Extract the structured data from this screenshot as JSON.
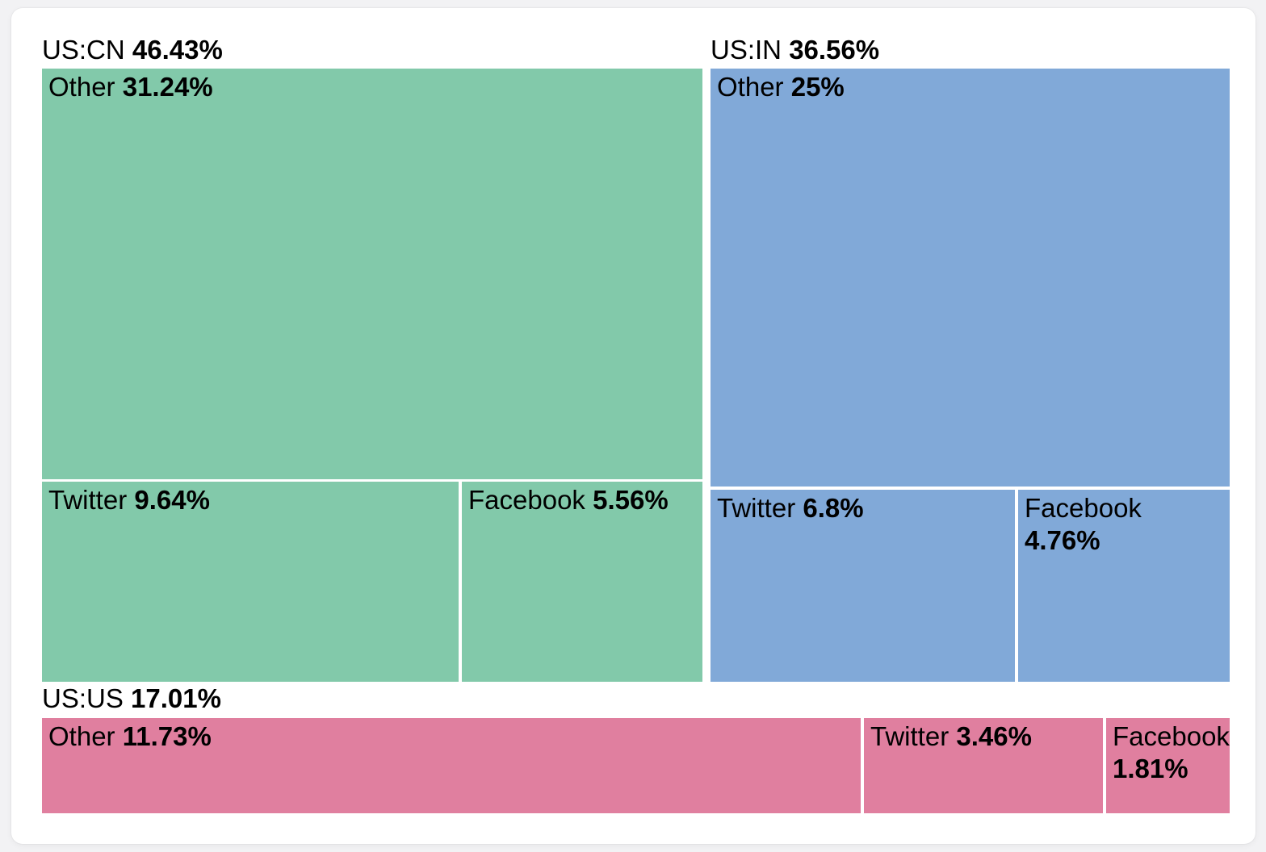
{
  "page": {
    "background_color": "#f2f2f4",
    "panel_background_color": "#ffffff"
  },
  "chart_data": {
    "type": "treemap",
    "title": "",
    "value_unit": "%",
    "legend": false,
    "groups": [
      {
        "label": "US:CN",
        "display_value": "46.43%",
        "value": 46.43,
        "color": "#82c9aa",
        "children": [
          {
            "label": "Other",
            "display_value": "31.24%",
            "value": 31.24
          },
          {
            "label": "Twitter",
            "display_value": "9.64%",
            "value": 9.64
          },
          {
            "label": "Facebook",
            "display_value": "5.56%",
            "value": 5.56
          }
        ]
      },
      {
        "label": "US:IN",
        "display_value": "36.56%",
        "value": 36.56,
        "color": "#81a9d8",
        "children": [
          {
            "label": "Other",
            "display_value": "25%",
            "value": 25
          },
          {
            "label": "Twitter",
            "display_value": "6.8%",
            "value": 6.8
          },
          {
            "label": "Facebook",
            "display_value": "4.76%",
            "value": 4.76
          }
        ]
      },
      {
        "label": "US:US",
        "display_value": "17.01%",
        "value": 17.01,
        "color": "#e07f9f",
        "children": [
          {
            "label": "Other",
            "display_value": "11.73%",
            "value": 11.73
          },
          {
            "label": "Twitter",
            "display_value": "3.46%",
            "value": 3.46
          },
          {
            "label": "Facebook",
            "display_value": "1.81%",
            "value": 1.81
          }
        ]
      }
    ]
  }
}
